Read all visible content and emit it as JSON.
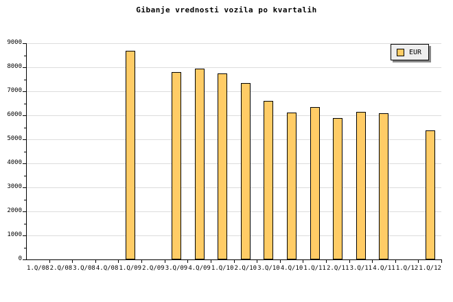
{
  "chart_data": {
    "type": "bar",
    "title": "Gibanje vrednosti vozila po kvartalih",
    "legend": {
      "label": "EUR",
      "position": "top-right"
    },
    "categories": [
      "1.Q/08",
      "2.Q/08",
      "3.Q/08",
      "4.Q/08",
      "1.Q/09",
      "2.Q/09",
      "3.Q/09",
      "4.Q/09",
      "1.Q/10",
      "2.Q/10",
      "3.Q/10",
      "4.Q/10",
      "1.Q/11",
      "2.Q/11",
      "3.Q/11",
      "4.Q/11",
      "1.Q/12",
      "1.Q/12"
    ],
    "values": [
      null,
      null,
      null,
      null,
      8690,
      null,
      7810,
      7930,
      7750,
      7350,
      6600,
      6100,
      6340,
      5890,
      6140,
      6090,
      null,
      5380
    ],
    "ylim": [
      0,
      9000
    ],
    "ytick_major": 1000,
    "ytick_minor": 500,
    "ytick_labels": [
      "0",
      "1000",
      "2000",
      "3000",
      "4000",
      "5000",
      "6000",
      "7000",
      "8000",
      "9000"
    ],
    "grid": true,
    "colors": {
      "background": "#FFFFFF",
      "bar_fill": "#FFCC66",
      "bar_border": "#000000",
      "gridline": "#DCDCDC",
      "axis": "#000000",
      "legend_bg": "#EEEEEE",
      "legend_shadow": "#888888"
    }
  }
}
